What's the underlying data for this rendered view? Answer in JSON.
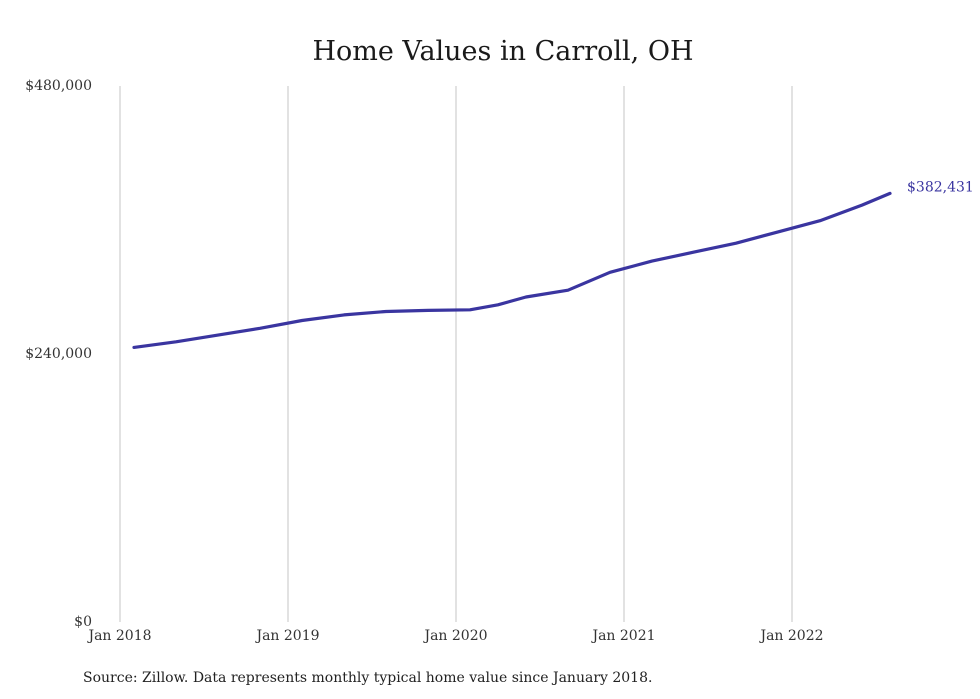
{
  "chart_data": {
    "type": "line",
    "title": "Home Values in Carroll, OH",
    "xlabel": "",
    "ylabel": "",
    "x_ticks": [
      "Jan 2018",
      "Jan 2019",
      "Jan 2020",
      "Jan 2021",
      "Jan 2022"
    ],
    "y_ticks": [
      "$0",
      "$240,000",
      "$480,000"
    ],
    "ylim": [
      0,
      480000
    ],
    "grid": "vertical",
    "line_color": "#3a35a0",
    "series": [
      {
        "x": [
          "2018-02",
          "2018-05",
          "2018-08",
          "2018-11",
          "2019-02",
          "2019-05",
          "2019-08",
          "2019-11",
          "2020-02",
          "2020-04",
          "2020-06",
          "2020-09",
          "2020-12",
          "2021-03",
          "2021-06",
          "2021-09",
          "2021-12",
          "2022-03",
          "2022-06",
          "2022-08"
        ],
        "values": [
          245000,
          250000,
          256000,
          262000,
          269000,
          274000,
          277000,
          278000,
          278500,
          283000,
          290000,
          296000,
          312000,
          322000,
          330000,
          338000,
          348000,
          358000,
          372000,
          382431
        ]
      }
    ],
    "end_label": "$382,431"
  },
  "footer": {
    "source": "Source: Zillow. Data represents monthly typical home value since January 2018."
  }
}
